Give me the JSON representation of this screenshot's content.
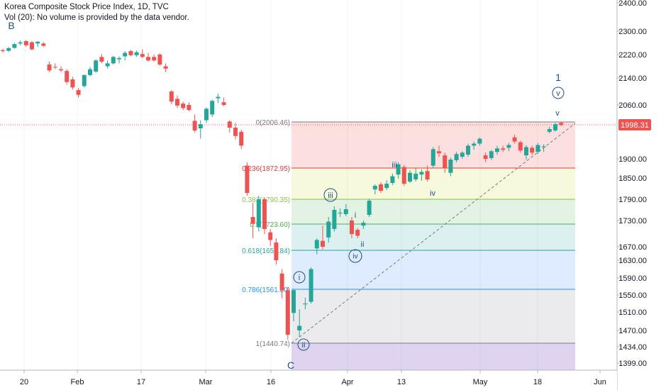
{
  "header": {
    "title": "Korea Composite Stock Price Index, 1D, TVC",
    "volume_note": "Vol (20): No volume is provided by the data vendor."
  },
  "colors": {
    "up": "#26a69a",
    "down": "#ef5350",
    "wave_labels": "#1e4f8c",
    "price_line": "#ef5350",
    "axis_text": "#131722"
  },
  "price_axis": {
    "ticks": [
      "2400.00",
      "2300.00",
      "2220.00",
      "2140.00",
      "2060.00",
      "1998.31",
      "1900.00",
      "1850.00",
      "1790.00",
      "1730.00",
      "1670.00",
      "1630.00",
      "1590.00",
      "1550.00",
      "1510.00",
      "1470.00",
      "1434.00",
      "1399.00"
    ],
    "current_price": "1998.31"
  },
  "time_axis": {
    "ticks": [
      "20",
      "Feb",
      "17",
      "Mar",
      "16",
      "Apr",
      "13",
      "May",
      "18",
      "Jun"
    ]
  },
  "fib": {
    "levels": [
      {
        "ratio": 0,
        "price": 2006.46,
        "label": "0(2006.46)",
        "color": "#787b86",
        "fill": "rgba(239,83,80,0.18)"
      },
      {
        "ratio": 0.236,
        "price": 1872.95,
        "label": "0.236(1872.95)",
        "color": "#e53935",
        "fill": "rgba(205,220,57,0.18)"
      },
      {
        "ratio": 0.382,
        "price": 1790.35,
        "label": "0.382(1790.35)",
        "color": "#8bc34a",
        "fill": "rgba(76,175,80,0.16)"
      },
      {
        "ratio": 0.5,
        "price": 1723.6,
        "label": "0.5(1723.60)",
        "color": "#4caf50",
        "fill": "rgba(38,166,154,0.16)"
      },
      {
        "ratio": 0.618,
        "price": 1656.84,
        "label": "0.618(1656.84)",
        "color": "#26a69a",
        "fill": "rgba(41,121,255,0.15)"
      },
      {
        "ratio": 0.786,
        "price": 1561.8,
        "label": "0.786(1561.80)",
        "color": "#2196f3",
        "fill": "rgba(120,123,134,0.15)"
      },
      {
        "ratio": 1,
        "price": 1440.74,
        "label": "1(1440.74)",
        "color": "#787b86",
        "fill": "rgba(103,58,183,0.22)"
      }
    ]
  },
  "wave_labels": [
    "B",
    "C",
    "1",
    "v",
    "v",
    "i",
    "ii",
    "iii",
    "iv",
    "i",
    "ii",
    "iii",
    "iv"
  ],
  "candles": [
    {
      "o": 2235,
      "h": 2240,
      "l": 2226,
      "c": 2232
    },
    {
      "o": 2233,
      "h": 2246,
      "l": 2229,
      "c": 2242
    },
    {
      "o": 2243,
      "h": 2260,
      "l": 2240,
      "c": 2256
    },
    {
      "o": 2258,
      "h": 2268,
      "l": 2252,
      "c": 2262
    },
    {
      "o": 2266,
      "h": 2270,
      "l": 2246,
      "c": 2252
    },
    {
      "o": 2262,
      "h": 2266,
      "l": 2234,
      "c": 2238
    },
    {
      "o": 2258,
      "h": 2266,
      "l": 2246,
      "c": 2264
    },
    {
      "o": 2258,
      "h": 2262,
      "l": 2246,
      "c": 2250
    },
    {
      "o": 2186,
      "h": 2196,
      "l": 2160,
      "c": 2166
    },
    {
      "o": 2178,
      "h": 2190,
      "l": 2170,
      "c": 2176
    },
    {
      "o": 2170,
      "h": 2180,
      "l": 2160,
      "c": 2166
    },
    {
      "o": 2164,
      "h": 2170,
      "l": 2120,
      "c": 2128
    },
    {
      "o": 2136,
      "h": 2144,
      "l": 2106,
      "c": 2112
    },
    {
      "o": 2104,
      "h": 2110,
      "l": 2082,
      "c": 2090
    },
    {
      "o": 2116,
      "h": 2152,
      "l": 2112,
      "c": 2150
    },
    {
      "o": 2150,
      "h": 2178,
      "l": 2146,
      "c": 2170
    },
    {
      "o": 2162,
      "h": 2204,
      "l": 2158,
      "c": 2200
    },
    {
      "o": 2212,
      "h": 2222,
      "l": 2190,
      "c": 2196
    },
    {
      "o": 2180,
      "h": 2200,
      "l": 2172,
      "c": 2190
    },
    {
      "o": 2190,
      "h": 2216,
      "l": 2186,
      "c": 2212
    },
    {
      "o": 2204,
      "h": 2214,
      "l": 2190,
      "c": 2208
    },
    {
      "o": 2214,
      "h": 2232,
      "l": 2200,
      "c": 2226
    },
    {
      "o": 2232,
      "h": 2236,
      "l": 2214,
      "c": 2218
    },
    {
      "o": 2218,
      "h": 2234,
      "l": 2212,
      "c": 2228
    },
    {
      "o": 2222,
      "h": 2238,
      "l": 2208,
      "c": 2212
    },
    {
      "o": 2212,
      "h": 2226,
      "l": 2196,
      "c": 2200
    },
    {
      "o": 2212,
      "h": 2220,
      "l": 2196,
      "c": 2200
    },
    {
      "o": 2220,
      "h": 2224,
      "l": 2182,
      "c": 2186
    },
    {
      "o": 2180,
      "h": 2190,
      "l": 2160,
      "c": 2172
    },
    {
      "o": 2100,
      "h": 2104,
      "l": 2062,
      "c": 2070
    },
    {
      "o": 2078,
      "h": 2088,
      "l": 2050,
      "c": 2058
    },
    {
      "o": 2064,
      "h": 2070,
      "l": 2044,
      "c": 2050
    },
    {
      "o": 2060,
      "h": 2068,
      "l": 2040,
      "c": 2044
    },
    {
      "o": 2010,
      "h": 2030,
      "l": 1976,
      "c": 1982
    },
    {
      "o": 1988,
      "h": 2012,
      "l": 1958,
      "c": 2000
    },
    {
      "o": 2012,
      "h": 2052,
      "l": 2004,
      "c": 2048
    },
    {
      "o": 2030,
      "h": 2076,
      "l": 2022,
      "c": 2072
    },
    {
      "o": 2080,
      "h": 2094,
      "l": 2066,
      "c": 2084
    },
    {
      "o": 2068,
      "h": 2082,
      "l": 2056,
      "c": 2060
    },
    {
      "o": 2008,
      "h": 2012,
      "l": 1976,
      "c": 1990
    },
    {
      "o": 1990,
      "h": 2004,
      "l": 1956,
      "c": 1966
    },
    {
      "o": 1978,
      "h": 1984,
      "l": 1928,
      "c": 1938
    },
    {
      "o": 1880,
      "h": 1890,
      "l": 1800,
      "c": 1808
    },
    {
      "o": 1740,
      "h": 1780,
      "l": 1690,
      "c": 1724
    },
    {
      "o": 1716,
      "h": 1800,
      "l": 1706,
      "c": 1790
    },
    {
      "o": 1790,
      "h": 1794,
      "l": 1700,
      "c": 1712
    },
    {
      "o": 1704,
      "h": 1712,
      "l": 1672,
      "c": 1686
    },
    {
      "o": 1680,
      "h": 1690,
      "l": 1620,
      "c": 1630
    },
    {
      "o": 1600,
      "h": 1610,
      "l": 1542,
      "c": 1560
    },
    {
      "o": 1560,
      "h": 1568,
      "l": 1449,
      "c": 1460
    },
    {
      "o": 1508,
      "h": 1562,
      "l": 1490,
      "c": 1560
    },
    {
      "o": 1470,
      "h": 1516,
      "l": 1455,
      "c": 1480
    },
    {
      "o": 1528,
      "h": 1544,
      "l": 1516,
      "c": 1530
    },
    {
      "o": 1534,
      "h": 1614,
      "l": 1530,
      "c": 1610
    },
    {
      "o": 1664,
      "h": 1690,
      "l": 1646,
      "c": 1686
    },
    {
      "o": 1684,
      "h": 1720,
      "l": 1660,
      "c": 1670
    },
    {
      "o": 1692,
      "h": 1740,
      "l": 1680,
      "c": 1728
    },
    {
      "o": 1712,
      "h": 1770,
      "l": 1706,
      "c": 1760
    },
    {
      "o": 1750,
      "h": 1764,
      "l": 1740,
      "c": 1752
    },
    {
      "o": 1748,
      "h": 1776,
      "l": 1742,
      "c": 1762
    },
    {
      "o": 1730,
      "h": 1740,
      "l": 1690,
      "c": 1700
    },
    {
      "o": 1710,
      "h": 1714,
      "l": 1690,
      "c": 1696
    },
    {
      "o": 1720,
      "h": 1730,
      "l": 1712,
      "c": 1726
    },
    {
      "o": 1746,
      "h": 1792,
      "l": 1740,
      "c": 1786
    },
    {
      "o": 1818,
      "h": 1832,
      "l": 1804,
      "c": 1828
    },
    {
      "o": 1832,
      "h": 1838,
      "l": 1808,
      "c": 1814
    },
    {
      "o": 1822,
      "h": 1844,
      "l": 1816,
      "c": 1834
    },
    {
      "o": 1836,
      "h": 1860,
      "l": 1830,
      "c": 1854
    },
    {
      "o": 1858,
      "h": 1890,
      "l": 1848,
      "c": 1884
    },
    {
      "o": 1876,
      "h": 1882,
      "l": 1828,
      "c": 1834
    },
    {
      "o": 1840,
      "h": 1868,
      "l": 1836,
      "c": 1862
    },
    {
      "o": 1846,
      "h": 1872,
      "l": 1840,
      "c": 1860
    },
    {
      "o": 1858,
      "h": 1870,
      "l": 1842,
      "c": 1864
    },
    {
      "o": 1866,
      "h": 1880,
      "l": 1840,
      "c": 1846
    },
    {
      "o": 1880,
      "h": 1934,
      "l": 1872,
      "c": 1928
    },
    {
      "o": 1922,
      "h": 1938,
      "l": 1906,
      "c": 1916
    },
    {
      "o": 1910,
      "h": 1918,
      "l": 1862,
      "c": 1872
    },
    {
      "o": 1862,
      "h": 1904,
      "l": 1854,
      "c": 1898
    },
    {
      "o": 1896,
      "h": 1920,
      "l": 1890,
      "c": 1914
    },
    {
      "o": 1906,
      "h": 1922,
      "l": 1900,
      "c": 1918
    },
    {
      "o": 1912,
      "h": 1944,
      "l": 1906,
      "c": 1938
    },
    {
      "o": 1938,
      "h": 1950,
      "l": 1926,
      "c": 1944
    },
    {
      "o": 1944,
      "h": 1962,
      "l": 1938,
      "c": 1958
    },
    {
      "o": 1910,
      "h": 1918,
      "l": 1890,
      "c": 1900
    },
    {
      "o": 1902,
      "h": 1926,
      "l": 1896,
      "c": 1922
    },
    {
      "o": 1920,
      "h": 1938,
      "l": 1912,
      "c": 1930
    },
    {
      "o": 1930,
      "h": 1938,
      "l": 1920,
      "c": 1926
    },
    {
      "o": 1932,
      "h": 1946,
      "l": 1922,
      "c": 1940
    },
    {
      "o": 1962,
      "h": 1970,
      "l": 1944,
      "c": 1950
    },
    {
      "o": 1948,
      "h": 1952,
      "l": 1918,
      "c": 1924
    },
    {
      "o": 1910,
      "h": 1940,
      "l": 1898,
      "c": 1934
    },
    {
      "o": 1932,
      "h": 1938,
      "l": 1910,
      "c": 1918
    },
    {
      "o": 1920,
      "h": 1946,
      "l": 1914,
      "c": 1940
    },
    {
      "o": 1934,
      "h": 1942,
      "l": 1920,
      "c": 1936
    },
    {
      "o": 1978,
      "h": 1992,
      "l": 1974,
      "c": 1986
    },
    {
      "o": 1982,
      "h": 2004,
      "l": 1978,
      "c": 2000
    },
    {
      "o": 2004,
      "h": 2008,
      "l": 1994,
      "c": 1998
    }
  ]
}
